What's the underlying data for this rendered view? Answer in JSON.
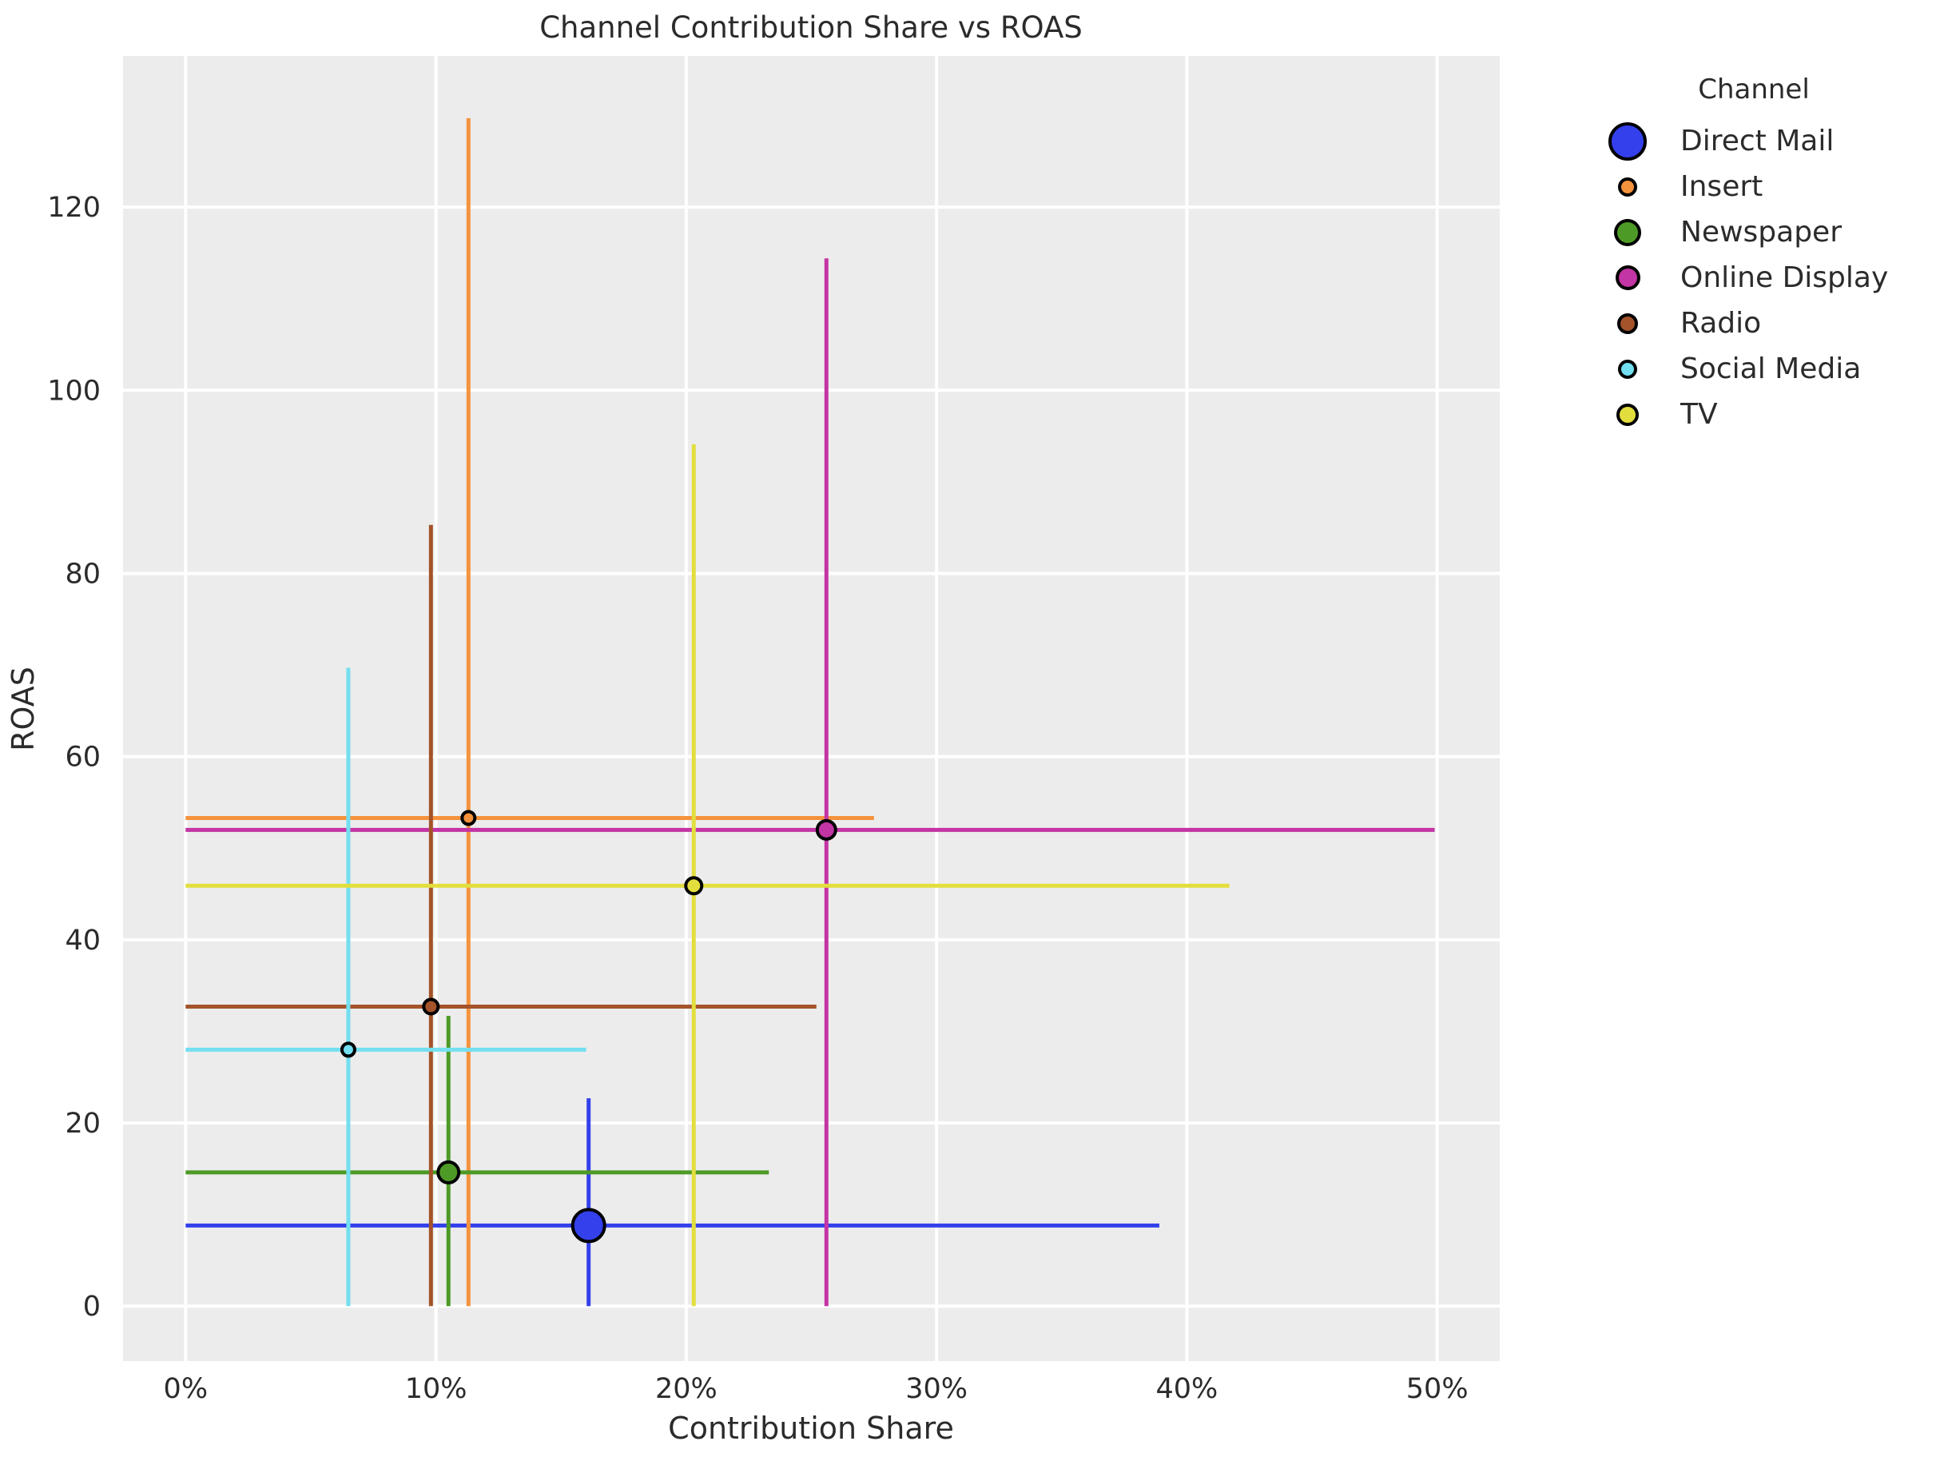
{
  "figure": {
    "background": "#ffffff",
    "plot_background": "#ececec",
    "grid_color": "#ffffff",
    "text_color": "#2b2b2b"
  },
  "legend": {
    "title": "Channel"
  },
  "chart_data": {
    "type": "scatter",
    "title": "Channel Contribution Share vs ROAS",
    "xlabel": "Contribution Share",
    "ylabel": "ROAS",
    "xlim": [
      -2.5,
      52.5
    ],
    "ylim": [
      -6,
      136.5
    ],
    "grid": true,
    "legend_position": "right-outside",
    "legend_title": "Channel",
    "x_ticks": [
      {
        "value": 0,
        "label": "0%"
      },
      {
        "value": 10,
        "label": "10%"
      },
      {
        "value": 20,
        "label": "20%"
      },
      {
        "value": 30,
        "label": "30%"
      },
      {
        "value": 40,
        "label": "40%"
      },
      {
        "value": 50,
        "label": "50%"
      }
    ],
    "y_ticks": [
      {
        "value": 0,
        "label": "0"
      },
      {
        "value": 20,
        "label": "20"
      },
      {
        "value": 40,
        "label": "40"
      },
      {
        "value": 60,
        "label": "60"
      },
      {
        "value": 80,
        "label": "80"
      },
      {
        "value": 100,
        "label": "100"
      },
      {
        "value": 120,
        "label": "120"
      }
    ],
    "series": [
      {
        "name": "Direct Mail",
        "color": "#3340eb",
        "x": 16.1,
        "y": 8.8,
        "x_err_low": 0,
        "x_err_high": 38.9,
        "y_err_low": 0,
        "y_err_high": 22.7,
        "marker_radius": 20
      },
      {
        "name": "Insert",
        "color": "#f5923c",
        "x": 11.3,
        "y": 53.3,
        "x_err_low": 0,
        "x_err_high": 27.5,
        "y_err_low": 0,
        "y_err_high": 129.7,
        "marker_radius": 8
      },
      {
        "name": "Newspaper",
        "color": "#4e9a26",
        "x": 10.5,
        "y": 14.6,
        "x_err_low": 0,
        "x_err_high": 23.3,
        "y_err_low": 0,
        "y_err_high": 31.7,
        "marker_radius": 13
      },
      {
        "name": "Online Display",
        "color": "#c334a4",
        "x": 25.6,
        "y": 52.0,
        "x_err_low": 0,
        "x_err_high": 49.9,
        "y_err_low": 0,
        "y_err_high": 114.4,
        "marker_radius": 11.5
      },
      {
        "name": "Radio",
        "color": "#a4532a",
        "x": 9.8,
        "y": 32.7,
        "x_err_low": 0,
        "x_err_high": 25.2,
        "y_err_low": 0,
        "y_err_high": 85.3,
        "marker_radius": 9
      },
      {
        "name": "Social Media",
        "color": "#73dff0",
        "x": 6.5,
        "y": 28.0,
        "x_err_low": 0,
        "x_err_high": 16.0,
        "y_err_low": 0,
        "y_err_high": 69.7,
        "marker_radius": 8
      },
      {
        "name": "TV",
        "color": "#e2de3e",
        "x": 20.3,
        "y": 45.9,
        "x_err_low": 0,
        "x_err_high": 41.7,
        "y_err_low": 0,
        "y_err_high": 94.1,
        "marker_radius": 10
      }
    ]
  }
}
